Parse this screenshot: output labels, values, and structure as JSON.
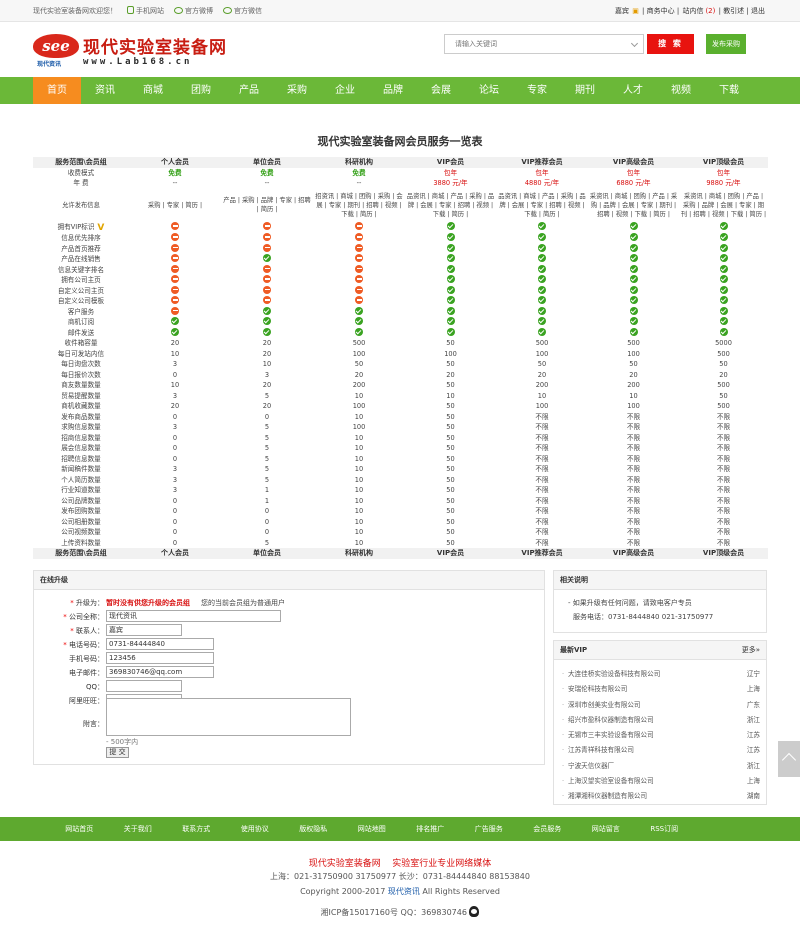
{
  "topbar": {
    "welcome": "现代实验室装备网欢迎您！",
    "mobile": "手机网站",
    "weibo1": "官方微博",
    "weibo2": "官方微信",
    "links": [
      "嘉宾",
      "商务中心",
      "站内信",
      "(2)",
      "教引述",
      "退出"
    ]
  },
  "logo": {
    "badge": "see",
    "name": "现代实验室装备网",
    "url": "www.Lab168.cn",
    "sub": "现代资讯"
  },
  "search": {
    "placeholder": "请输入关键词",
    "button": "搜 索",
    "publish": "发布采购"
  },
  "nav": [
    "首页",
    "资讯",
    "商城",
    "团购",
    "产品",
    "采购",
    "企业",
    "品牌",
    "会展",
    "论坛",
    "专家",
    "期刊",
    "人才",
    "视频",
    "下载"
  ],
  "page_title": "现代实验室装备网会员服务一览表",
  "table": {
    "headers": [
      "服务范围\\会员组",
      "个人会员",
      "单位会员",
      "科研机构",
      "VIP会员",
      "VIP推荐会员",
      "VIP高级会员",
      "VIP顶级会员"
    ],
    "charge_label": "收费模式",
    "charge": [
      "免费",
      "免费",
      "免费",
      "包年",
      "包年",
      "包年",
      "包年"
    ],
    "fee_label": "年 费",
    "fee": [
      "--",
      "--",
      "--",
      "3880 元/年",
      "4880 元/年",
      "6880 元/年",
      "9880 元/年"
    ],
    "allow_label": "允许发布信息",
    "allow": [
      "采购 | 专家 | 简历 |",
      "产品 | 采购 | 品牌 | 专家 | 招聘 | 简历 |",
      "招资讯 | 商城 | 团购 | 采购 | 会展 | 专家 | 期刊 | 招聘 | 视频 | 下载 | 简历 |",
      "品资讯 | 商城 | 产品 | 采购 | 品牌 | 会展 | 专家 | 招聘 | 视频 | 下载 | 简历 |",
      "品资讯 | 商城 | 产品 | 采购 | 品牌 | 会展 | 专家 | 招聘 | 视频 | 下载 | 简历 |",
      "采资讯 | 商城 | 团购 | 产品 | 采购 | 品牌 | 会展 | 专家 | 期刊 | 招聘 | 视频 | 下载 | 简历 |",
      "采资讯 | 商城 | 团购 | 产品 | 采购 | 品牌 | 会展 | 专家 | 期刊 | 招聘 | 视频 | 下载 | 简历 |"
    ],
    "feature_rows": [
      {
        "label": "拥有VIP标识",
        "v": [
          0,
          0,
          0,
          1,
          1,
          1,
          1
        ]
      },
      {
        "label": "信息优先排序",
        "v": [
          0,
          0,
          0,
          1,
          1,
          1,
          1
        ]
      },
      {
        "label": "产品首页推荐",
        "v": [
          0,
          0,
          0,
          1,
          1,
          1,
          1
        ]
      },
      {
        "label": "产品在线销售",
        "v": [
          0,
          1,
          0,
          1,
          1,
          1,
          1
        ]
      },
      {
        "label": "信息关键字排名",
        "v": [
          0,
          0,
          0,
          1,
          1,
          1,
          1
        ]
      },
      {
        "label": "拥有公司主页",
        "v": [
          0,
          0,
          0,
          1,
          1,
          1,
          1
        ]
      },
      {
        "label": "自定义公司主页",
        "v": [
          0,
          0,
          0,
          1,
          1,
          1,
          1
        ]
      },
      {
        "label": "自定义公司模板",
        "v": [
          0,
          0,
          0,
          1,
          1,
          1,
          1
        ]
      },
      {
        "label": "客户服务",
        "v": [
          0,
          1,
          1,
          1,
          1,
          1,
          1
        ]
      },
      {
        "label": "商机订阅",
        "v": [
          1,
          1,
          1,
          1,
          1,
          1,
          1
        ]
      },
      {
        "label": "邮件发送",
        "v": [
          1,
          1,
          1,
          1,
          1,
          1,
          1
        ]
      }
    ],
    "num_rows": [
      {
        "label": "收件箱容量",
        "v": [
          "20",
          "20",
          "500",
          "50",
          "500",
          "500",
          "5000"
        ]
      },
      {
        "label": "每日可发站内信",
        "v": [
          "10",
          "20",
          "100",
          "100",
          "100",
          "100",
          "500"
        ]
      },
      {
        "label": "每日询盘次数",
        "v": [
          "3",
          "10",
          "50",
          "50",
          "50",
          "50",
          "50"
        ]
      },
      {
        "label": "每日报价次数",
        "v": [
          "0",
          "3",
          "20",
          "20",
          "20",
          "20",
          "20"
        ]
      },
      {
        "label": "商友数量数量",
        "v": [
          "10",
          "20",
          "200",
          "50",
          "200",
          "200",
          "500"
        ]
      },
      {
        "label": "贸易提醒数量",
        "v": [
          "3",
          "5",
          "10",
          "10",
          "10",
          "10",
          "50"
        ]
      },
      {
        "label": "商机收藏数量",
        "v": [
          "20",
          "20",
          "100",
          "50",
          "100",
          "100",
          "500"
        ]
      },
      {
        "label": "发布商品数量",
        "v": [
          "0",
          "0",
          "10",
          "50",
          "不限",
          "不限",
          "不限"
        ]
      },
      {
        "label": "求购信息数量",
        "v": [
          "3",
          "5",
          "100",
          "50",
          "不限",
          "不限",
          "不限"
        ]
      },
      {
        "label": "招商信息数量",
        "v": [
          "0",
          "5",
          "10",
          "50",
          "不限",
          "不限",
          "不限"
        ]
      },
      {
        "label": "展会信息数量",
        "v": [
          "0",
          "5",
          "10",
          "50",
          "不限",
          "不限",
          "不限"
        ]
      },
      {
        "label": "招聘信息数量",
        "v": [
          "0",
          "5",
          "10",
          "50",
          "不限",
          "不限",
          "不限"
        ]
      },
      {
        "label": "新闻稿件数量",
        "v": [
          "3",
          "5",
          "10",
          "50",
          "不限",
          "不限",
          "不限"
        ]
      },
      {
        "label": "个人简历数量",
        "v": [
          "3",
          "5",
          "10",
          "50",
          "不限",
          "不限",
          "不限"
        ]
      },
      {
        "label": "行业知道数量",
        "v": [
          "3",
          "1",
          "10",
          "50",
          "不限",
          "不限",
          "不限"
        ]
      },
      {
        "label": "公司品牌数量",
        "v": [
          "0",
          "1",
          "10",
          "50",
          "不限",
          "不限",
          "不限"
        ]
      },
      {
        "label": "发布团购数量",
        "v": [
          "0",
          "0",
          "10",
          "50",
          "不限",
          "不限",
          "不限"
        ]
      },
      {
        "label": "公司相册数量",
        "v": [
          "0",
          "0",
          "10",
          "50",
          "不限",
          "不限",
          "不限"
        ]
      },
      {
        "label": "公司视频数量",
        "v": [
          "0",
          "0",
          "10",
          "50",
          "不限",
          "不限",
          "不限"
        ]
      },
      {
        "label": "上传资料数量",
        "v": [
          "0",
          "5",
          "10",
          "50",
          "不限",
          "不限",
          "不限"
        ]
      }
    ]
  },
  "upgrade": {
    "title": "在线升级",
    "level_label": "升级为：",
    "level_value": "暂时没有供您升级的会员组",
    "level_note": "您的当前会员组为普通用户",
    "company_label": "公司全称：",
    "company_value": "现代资讯",
    "contact_label": "联系人：",
    "contact_value": "嘉宾",
    "phone_label": "电话号码：",
    "phone_value": "0731-84444840",
    "mobile_label": "手机号码：",
    "mobile_value": "123456",
    "email_label": "电子邮件：",
    "email_value": "369830746@qq.com",
    "qq_label": "QQ：",
    "qq_value": "",
    "ww_label": "阿里旺旺：",
    "ww_value": "",
    "note_label": "附言：",
    "note_limit": "- 500字内",
    "submit": "提 交"
  },
  "help": {
    "title": "相关说明",
    "line1": "- 如果升级有任何问题，请致电客户专员",
    "line2": "服务电话：0731-8444840 021-31750977"
  },
  "newvip": {
    "title": "最新VIP",
    "more": "更多»",
    "items": [
      {
        "name": "大连佳桥实验设备科技有限公司",
        "region": "辽宁"
      },
      {
        "name": "安瑞伦科技有限公司",
        "region": "上海"
      },
      {
        "name": "深圳市创美实业有限公司",
        "region": "广东"
      },
      {
        "name": "绍兴市盈科仪器制造有限公司",
        "region": "浙江"
      },
      {
        "name": "无锡市三丰实验设备有限公司",
        "region": "江苏"
      },
      {
        "name": "江苏青祥科技有限公司",
        "region": "江苏"
      },
      {
        "name": "宁波天信仪器厂",
        "region": "浙江"
      },
      {
        "name": "上海汉望实验室设备有限公司",
        "region": "上海"
      },
      {
        "name": "湘潭湘科仪器制造有限公司",
        "region": "湖南"
      }
    ]
  },
  "footer": {
    "links": [
      "网站首页",
      "关于我们",
      "联系方式",
      "使用协议",
      "版权隐私",
      "网站地图",
      "排名推广",
      "广告服务",
      "会员服务",
      "网站留言",
      "RSS订阅"
    ],
    "slogan1": "现代实验室装备网",
    "slogan2": "实验室行业专业网络媒体",
    "contact": "上海：021-31750900 31750977 长沙：0731-84444840 88153840",
    "copyright_pre": "Copyright 2000-2017",
    "copyright_link": "现代资讯",
    "copyright_post": "All Rights Reserved",
    "icp": "湘ICP备15017160号 QQ：369830746"
  }
}
